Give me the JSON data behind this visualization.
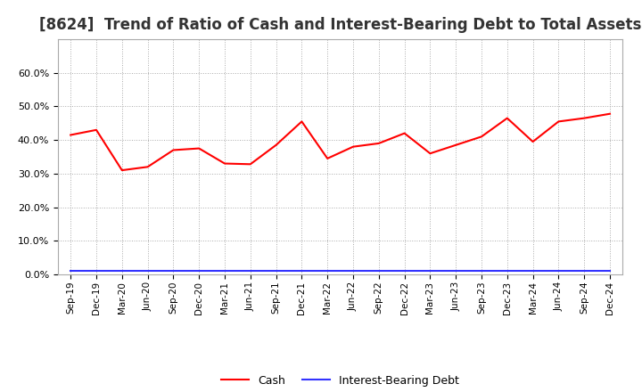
{
  "title": "[8624]  Trend of Ratio of Cash and Interest-Bearing Debt to Total Assets",
  "labels": [
    "Sep-19",
    "Dec-19",
    "Mar-20",
    "Jun-20",
    "Sep-20",
    "Dec-20",
    "Mar-21",
    "Jun-21",
    "Sep-21",
    "Dec-21",
    "Mar-22",
    "Jun-22",
    "Sep-22",
    "Dec-22",
    "Mar-23",
    "Jun-23",
    "Sep-23",
    "Dec-23",
    "Mar-24",
    "Jun-24",
    "Sep-24",
    "Dec-24"
  ],
  "cash": [
    0.415,
    0.43,
    0.31,
    0.32,
    0.37,
    0.375,
    0.33,
    0.328,
    0.385,
    0.455,
    0.345,
    0.38,
    0.39,
    0.42,
    0.36,
    0.385,
    0.41,
    0.465,
    0.395,
    0.455,
    0.465,
    0.478
  ],
  "debt": [
    0.01,
    0.01,
    0.01,
    0.01,
    0.01,
    0.01,
    0.01,
    0.01,
    0.01,
    0.01,
    0.01,
    0.01,
    0.01,
    0.01,
    0.01,
    0.01,
    0.01,
    0.01,
    0.01,
    0.01,
    0.01,
    0.01
  ],
  "cash_color": "#FF0000",
  "debt_color": "#3333FF",
  "bg_color": "#FFFFFF",
  "plot_bg_color": "#FFFFFF",
  "grid_color": "#AAAAAA",
  "title_fontsize": 12,
  "ylim": [
    0.0,
    0.7
  ],
  "yticks": [
    0.0,
    0.1,
    0.2,
    0.3,
    0.4,
    0.5,
    0.6
  ],
  "legend_labels": [
    "Cash",
    "Interest-Bearing Debt"
  ],
  "line_width": 1.5
}
